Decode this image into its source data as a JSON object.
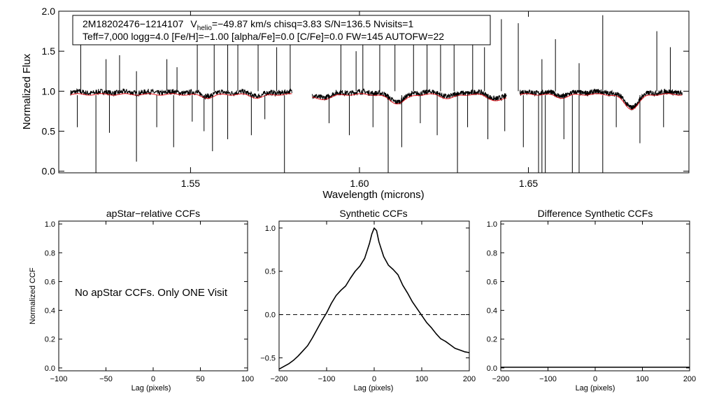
{
  "chart_data": [
    {
      "type": "line",
      "name": "spectrum",
      "info_line1_part1": "2M18202476−1214107",
      "info_vhelio_prefix": "V",
      "info_vhelio_sub": "helio",
      "info_line1_part2": "=−49.87 km/s  chisq=3.83  S/N=136.5  Nvisits=1",
      "info_line2": "Teff=7,000 logg=4.0 [Fe/H]=−1.00 [alpha/Fe]=0.0 [C/Fe]=0.0 FW=145 AUTOFW=22",
      "xlabel": "Wavelength (microns)",
      "ylabel": "Normalized Flux",
      "xlim": [
        1.511,
        1.6975
      ],
      "ylim": [
        -0.02,
        2.0
      ],
      "xticks": [
        {
          "v": 1.55,
          "label": "1.55"
        },
        {
          "v": 1.6,
          "label": "1.60"
        },
        {
          "v": 1.65,
          "label": "1.65"
        }
      ],
      "yticks": [
        {
          "v": 0.0,
          "label": "0.0"
        },
        {
          "v": 0.5,
          "label": "0.5"
        },
        {
          "v": 1.0,
          "label": "1.0"
        },
        {
          "v": 1.5,
          "label": "1.5"
        },
        {
          "v": 2.0,
          "label": "2.0"
        }
      ],
      "chips": [
        [
          1.5145,
          1.58
        ],
        [
          1.586,
          1.6435
        ],
        [
          1.6475,
          1.6955
        ]
      ],
      "continuum": 0.97,
      "dips": [
        {
          "c": 1.6112,
          "w": 0.0025,
          "d": 0.11
        },
        {
          "c": 1.6805,
          "w": 0.0022,
          "d": 0.18
        },
        {
          "c": 1.5885,
          "w": 0.003,
          "d": 0.06
        },
        {
          "c": 1.641,
          "w": 0.0025,
          "d": 0.08
        },
        {
          "c": 1.555,
          "w": 0.002,
          "d": 0.04
        },
        {
          "c": 1.57,
          "w": 0.002,
          "d": 0.04
        },
        {
          "c": 1.6265,
          "w": 0.002,
          "d": 0.05
        },
        {
          "c": 1.66,
          "w": 0.002,
          "d": 0.04
        }
      ],
      "spikes_up": [
        {
          "x": 1.5175,
          "y": 1.7
        },
        {
          "x": 1.525,
          "y": 1.4
        },
        {
          "x": 1.529,
          "y": 1.45
        },
        {
          "x": 1.534,
          "y": 1.25
        },
        {
          "x": 1.543,
          "y": 1.4
        },
        {
          "x": 1.546,
          "y": 1.3
        },
        {
          "x": 1.552,
          "y": 1.7
        },
        {
          "x": 1.557,
          "y": 1.8
        },
        {
          "x": 1.561,
          "y": 1.7
        },
        {
          "x": 1.564,
          "y": 1.95
        },
        {
          "x": 1.57,
          "y": 1.75
        },
        {
          "x": 1.5755,
          "y": 1.55
        },
        {
          "x": 1.5795,
          "y": 1.6
        },
        {
          "x": 1.5945,
          "y": 1.8
        },
        {
          "x": 1.599,
          "y": 1.5
        },
        {
          "x": 1.601,
          "y": 1.75
        },
        {
          "x": 1.606,
          "y": 1.7
        },
        {
          "x": 1.6105,
          "y": 1.65
        },
        {
          "x": 1.616,
          "y": 1.85
        },
        {
          "x": 1.62,
          "y": 1.7
        },
        {
          "x": 1.624,
          "y": 1.95
        },
        {
          "x": 1.628,
          "y": 1.65
        },
        {
          "x": 1.6335,
          "y": 1.85
        },
        {
          "x": 1.637,
          "y": 1.55
        },
        {
          "x": 1.642,
          "y": 1.9
        },
        {
          "x": 1.647,
          "y": 1.85
        },
        {
          "x": 1.654,
          "y": 1.4
        },
        {
          "x": 1.658,
          "y": 1.65
        },
        {
          "x": 1.665,
          "y": 1.35
        },
        {
          "x": 1.672,
          "y": 1.95
        },
        {
          "x": 1.688,
          "y": 1.75
        },
        {
          "x": 1.692,
          "y": 1.55
        }
      ],
      "spikes_down": [
        {
          "x": 1.5165,
          "y": 0.55
        },
        {
          "x": 1.522,
          "y": -0.02
        },
        {
          "x": 1.526,
          "y": 0.48
        },
        {
          "x": 1.534,
          "y": 0.12
        },
        {
          "x": 1.54,
          "y": 0.55
        },
        {
          "x": 1.545,
          "y": 0.3
        },
        {
          "x": 1.5505,
          "y": 0.62
        },
        {
          "x": 1.554,
          "y": 0.5
        },
        {
          "x": 1.5565,
          "y": 0.25
        },
        {
          "x": 1.561,
          "y": 0.4
        },
        {
          "x": 1.568,
          "y": 0.45
        },
        {
          "x": 1.572,
          "y": 0.65
        },
        {
          "x": 1.5778,
          "y": -0.02
        },
        {
          "x": 1.591,
          "y": 0.6
        },
        {
          "x": 1.597,
          "y": 0.45
        },
        {
          "x": 1.604,
          "y": 0.55
        },
        {
          "x": 1.6085,
          "y": -0.02
        },
        {
          "x": 1.6125,
          "y": 0.3
        },
        {
          "x": 1.618,
          "y": 0.6
        },
        {
          "x": 1.623,
          "y": 0.45
        },
        {
          "x": 1.629,
          "y": -0.02
        },
        {
          "x": 1.632,
          "y": 0.55
        },
        {
          "x": 1.638,
          "y": 0.4
        },
        {
          "x": 1.643,
          "y": 0.5
        },
        {
          "x": 1.6485,
          "y": 0.3
        },
        {
          "x": 1.653,
          "y": -0.02
        },
        {
          "x": 1.654,
          "y": -0.02
        },
        {
          "x": 1.655,
          "y": -0.02
        },
        {
          "x": 1.6605,
          "y": 0.4
        },
        {
          "x": 1.663,
          "y": -0.02
        },
        {
          "x": 1.665,
          "y": -0.02
        },
        {
          "x": 1.672,
          "y": -0.02
        },
        {
          "x": 1.676,
          "y": 0.55
        },
        {
          "x": 1.683,
          "y": 0.35
        },
        {
          "x": 1.69,
          "y": 0.55
        }
      ]
    },
    {
      "type": "line",
      "name": "apstar-ccf",
      "title": "apStar−relative CCFs",
      "xlabel": "Lag (pixels)",
      "ylabel": "Normalized CCF",
      "xlim": [
        -100,
        100
      ],
      "ylim": [
        -0.02,
        1.02
      ],
      "xticks": [
        {
          "v": -100,
          "label": "−100"
        },
        {
          "v": -50,
          "label": "−50"
        },
        {
          "v": 0,
          "label": "0"
        },
        {
          "v": 50,
          "label": "50"
        },
        {
          "v": 100,
          "label": "100"
        }
      ],
      "yticks": [
        {
          "v": 0.0,
          "label": "0.0"
        },
        {
          "v": 0.2,
          "label": "0.2"
        },
        {
          "v": 0.4,
          "label": "0.4"
        },
        {
          "v": 0.6,
          "label": "0.6"
        },
        {
          "v": 0.8,
          "label": "0.8"
        },
        {
          "v": 1.0,
          "label": "1.0"
        }
      ],
      "annotation": "No apStar CCFs.  Only ONE Visit"
    },
    {
      "type": "line",
      "name": "synthetic-ccf",
      "title": "Synthetic CCFs",
      "xlabel": "Lag (pixels)",
      "xlim": [
        -200,
        200
      ],
      "ylim": [
        -0.65,
        1.08
      ],
      "zero_line": 0.0,
      "xticks": [
        {
          "v": -200,
          "label": "−200"
        },
        {
          "v": -100,
          "label": "−100"
        },
        {
          "v": 0,
          "label": "0"
        },
        {
          "v": 100,
          "label": "100"
        },
        {
          "v": 200,
          "label": "200"
        }
      ],
      "yticks": [
        {
          "v": -0.5,
          "label": "−0.5"
        },
        {
          "v": 0.0,
          "label": "0.0"
        },
        {
          "v": 0.5,
          "label": "0.5"
        },
        {
          "v": 1.0,
          "label": "1.0"
        }
      ],
      "x": [
        -200,
        -190,
        -180,
        -170,
        -160,
        -150,
        -140,
        -130,
        -120,
        -110,
        -100,
        -90,
        -80,
        -70,
        -60,
        -50,
        -40,
        -30,
        -20,
        -10,
        -5,
        0,
        5,
        10,
        20,
        30,
        40,
        50,
        60,
        70,
        80,
        90,
        100,
        110,
        120,
        130,
        140,
        150,
        160,
        170,
        180,
        190,
        200
      ],
      "values": [
        -0.63,
        -0.6,
        -0.57,
        -0.53,
        -0.48,
        -0.42,
        -0.36,
        -0.27,
        -0.17,
        -0.07,
        0.02,
        0.13,
        0.22,
        0.28,
        0.33,
        0.42,
        0.5,
        0.56,
        0.65,
        0.82,
        0.93,
        1.0,
        0.97,
        0.84,
        0.67,
        0.57,
        0.52,
        0.46,
        0.34,
        0.25,
        0.15,
        0.07,
        -0.01,
        -0.09,
        -0.15,
        -0.22,
        -0.28,
        -0.31,
        -0.35,
        -0.39,
        -0.41,
        -0.43,
        -0.44
      ]
    },
    {
      "type": "line",
      "name": "difference-ccf",
      "title": "Difference Synthetic CCFs",
      "xlim": [
        -200,
        200
      ],
      "ylim": [
        -0.02,
        1.02
      ],
      "xlabel": "Lag (pixels)",
      "xticks": [
        {
          "v": -200,
          "label": "−200"
        },
        {
          "v": -100,
          "label": "−100"
        },
        {
          "v": 0,
          "label": "0"
        },
        {
          "v": 100,
          "label": "100"
        },
        {
          "v": 200,
          "label": "200"
        }
      ],
      "yticks": [
        {
          "v": 0.0,
          "label": "0.0"
        },
        {
          "v": 0.2,
          "label": "0.2"
        },
        {
          "v": 0.4,
          "label": "0.4"
        },
        {
          "v": 0.6,
          "label": "0.6"
        },
        {
          "v": 0.8,
          "label": "0.8"
        },
        {
          "v": 1.0,
          "label": "1.0"
        }
      ],
      "x": [
        -200,
        200
      ],
      "values": [
        0.0,
        0.0
      ]
    }
  ],
  "colors": {
    "observed": "#000000",
    "model": "#e8141c",
    "axes": "#000000"
  }
}
